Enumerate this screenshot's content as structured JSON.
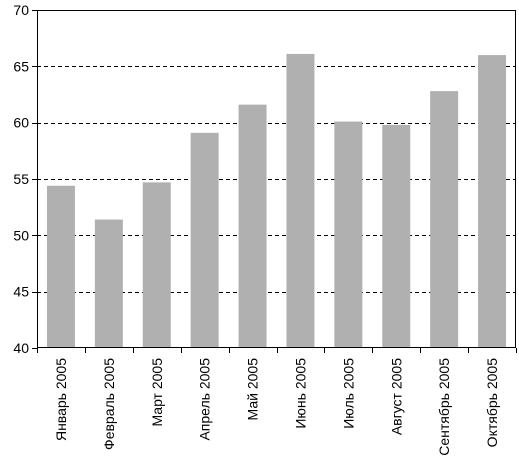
{
  "chart_data": {
    "type": "bar",
    "title": "",
    "xlabel": "",
    "ylabel": "",
    "categories": [
      "Январь 2005",
      "Февраль 2005",
      "Март 2005",
      "Апрель 2005",
      "Май 2005",
      "Июнь 2005",
      "Июль 2005",
      "Август 2005",
      "Сентябрь 2005",
      "Октябрь 2005"
    ],
    "values": [
      54.4,
      51.4,
      54.7,
      59.1,
      61.6,
      66.1,
      60.1,
      59.8,
      62.8,
      66.0
    ],
    "ylim": [
      40,
      70
    ],
    "yticks": [
      "40",
      "45",
      "50",
      "55",
      "60",
      "65",
      "70"
    ],
    "grid": "dashed horizontal at 45, 50, 55, 60, 65",
    "legend": "none",
    "colors": {
      "bar": "#b0b0b0",
      "axis": "#000000",
      "grid": "#000000",
      "background": "#ffffff"
    }
  }
}
